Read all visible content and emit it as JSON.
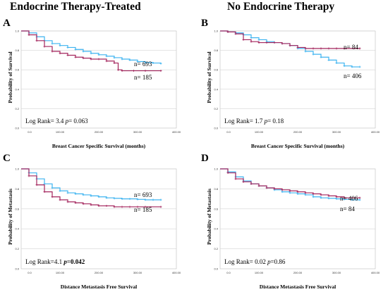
{
  "column_titles": [
    "Endocrine Therapy-Treated",
    "No Endocrine Therapy"
  ],
  "colors": {
    "blue": "#3db3f0",
    "red": "#a3245c",
    "grid": "#d3d3d3"
  },
  "chart_data": [
    {
      "letter": "A",
      "type": "line",
      "ylabel": "Probability of Survival",
      "xlabel": "Breast Cancer Specific Survival (months)",
      "xlim": [
        0,
        400
      ],
      "ylim": [
        0,
        1.0
      ],
      "xticks": [
        "0.0",
        "100.00",
        "200.00",
        "300.00",
        "400.00"
      ],
      "yticks": [
        "0.0",
        "0.2",
        "0.4",
        "0.6",
        "0.8",
        "1.0"
      ],
      "series": [
        {
          "name": "n= 693",
          "color": "#3db3f0",
          "x": [
            0,
            20,
            40,
            60,
            80,
            100,
            120,
            140,
            160,
            180,
            200,
            220,
            240,
            260,
            280,
            300,
            320,
            340,
            360
          ],
          "y": [
            1.0,
            0.98,
            0.94,
            0.9,
            0.87,
            0.85,
            0.83,
            0.81,
            0.79,
            0.77,
            0.755,
            0.74,
            0.725,
            0.71,
            0.7,
            0.685,
            0.675,
            0.67,
            0.665
          ]
        },
        {
          "name": "n= 185",
          "color": "#a3245c",
          "x": [
            0,
            20,
            40,
            60,
            80,
            100,
            120,
            140,
            160,
            180,
            200,
            220,
            240,
            250,
            260,
            290,
            320,
            360
          ],
          "y": [
            1.0,
            0.96,
            0.9,
            0.84,
            0.79,
            0.77,
            0.75,
            0.73,
            0.72,
            0.71,
            0.71,
            0.69,
            0.67,
            0.6,
            0.59,
            0.59,
            0.59,
            0.59
          ]
        }
      ],
      "annotations": [
        "n= 693",
        "n= 185"
      ],
      "stats": {
        "prefix": "Log Rank= 3.4 ",
        "p_label": "p",
        "p_value": "= 0.063",
        "p_bold": false
      }
    },
    {
      "letter": "B",
      "type": "line",
      "ylabel": "Probability of Survival",
      "xlabel": "Breast Cancer Specific Survival (months)",
      "xlim": [
        0,
        400
      ],
      "ylim": [
        0,
        1.0
      ],
      "xticks": [
        "0.0",
        "100.00",
        "200.00",
        "300.00",
        "400.00"
      ],
      "yticks": [
        "0.0",
        "0.2",
        "0.4",
        "0.6",
        "0.8",
        "1.0"
      ],
      "series": [
        {
          "name": "n= 406",
          "color": "#3db3f0",
          "x": [
            0,
            20,
            40,
            60,
            80,
            100,
            120,
            140,
            160,
            180,
            200,
            220,
            240,
            260,
            280,
            300,
            320,
            340,
            360
          ],
          "y": [
            1.0,
            0.99,
            0.98,
            0.96,
            0.93,
            0.91,
            0.89,
            0.88,
            0.87,
            0.85,
            0.82,
            0.79,
            0.76,
            0.73,
            0.7,
            0.67,
            0.64,
            0.63,
            0.63
          ]
        },
        {
          "name": "n= 84",
          "color": "#a3245c",
          "x": [
            0,
            20,
            40,
            60,
            80,
            100,
            120,
            140,
            160,
            180,
            200,
            220,
            240,
            260,
            280,
            300,
            320,
            360
          ],
          "y": [
            1.0,
            0.99,
            0.97,
            0.91,
            0.89,
            0.88,
            0.88,
            0.88,
            0.87,
            0.85,
            0.83,
            0.82,
            0.82,
            0.82,
            0.82,
            0.82,
            0.82,
            0.82
          ]
        }
      ],
      "annotations": [
        "n= 84",
        "n= 406"
      ],
      "stats": {
        "prefix": "Log Rank= 1.7 ",
        "p_label": "p",
        "p_value": "= 0.18",
        "p_bold": false
      }
    },
    {
      "letter": "C",
      "type": "line",
      "ylabel": "Probability of Metastasis",
      "xlabel": "Distance Metastasis Free Survival",
      "xlim": [
        0,
        400
      ],
      "ylim": [
        0,
        1.0
      ],
      "xticks": [
        "0.0",
        "100.00",
        "200.00",
        "300.00",
        "400.00"
      ],
      "yticks": [
        "0.0",
        "0.2",
        "0.4",
        "0.6",
        "0.8",
        "1.0"
      ],
      "series": [
        {
          "name": "n= 693",
          "color": "#3db3f0",
          "x": [
            0,
            20,
            40,
            60,
            80,
            100,
            120,
            140,
            160,
            180,
            200,
            220,
            240,
            260,
            280,
            300,
            320,
            340,
            360
          ],
          "y": [
            1.0,
            0.96,
            0.9,
            0.85,
            0.81,
            0.78,
            0.76,
            0.75,
            0.74,
            0.73,
            0.72,
            0.71,
            0.705,
            0.7,
            0.7,
            0.695,
            0.69,
            0.69,
            0.69
          ]
        },
        {
          "name": "n= 185",
          "color": "#a3245c",
          "x": [
            0,
            20,
            40,
            60,
            80,
            100,
            120,
            140,
            160,
            180,
            200,
            220,
            240,
            260,
            280,
            300,
            320,
            360
          ],
          "y": [
            1.0,
            0.93,
            0.84,
            0.77,
            0.72,
            0.69,
            0.67,
            0.66,
            0.65,
            0.64,
            0.63,
            0.63,
            0.62,
            0.62,
            0.62,
            0.62,
            0.62,
            0.62
          ]
        }
      ],
      "annotations": [
        "n= 693",
        "n= 185"
      ],
      "stats": {
        "prefix": "Log Rank=4.1 ",
        "p_label": "p",
        "p_value": "=0.042",
        "p_bold": true
      }
    },
    {
      "letter": "D",
      "type": "line",
      "ylabel": "Probability of Metastasis",
      "xlabel": "Distance Metastasis Free Survival",
      "xlim": [
        0,
        400
      ],
      "ylim": [
        0,
        1.0
      ],
      "xticks": [
        "0.0",
        "100.00",
        "200.00",
        "300.00",
        "400.00"
      ],
      "yticks": [
        "0.0",
        "0.2",
        "0.4",
        "0.6",
        "0.8",
        "1.0"
      ],
      "series": [
        {
          "name": "n= 406",
          "color": "#3db3f0",
          "x": [
            0,
            20,
            40,
            60,
            80,
            100,
            120,
            140,
            160,
            180,
            200,
            220,
            240,
            260,
            280,
            300,
            320,
            340,
            360
          ],
          "y": [
            1.0,
            0.97,
            0.92,
            0.88,
            0.85,
            0.83,
            0.81,
            0.79,
            0.77,
            0.76,
            0.75,
            0.74,
            0.72,
            0.71,
            0.705,
            0.7,
            0.695,
            0.69,
            0.69
          ]
        },
        {
          "name": "n= 84",
          "color": "#a3245c",
          "x": [
            0,
            20,
            40,
            60,
            80,
            100,
            120,
            140,
            160,
            180,
            200,
            220,
            240,
            260,
            280,
            300,
            320,
            360
          ],
          "y": [
            1.0,
            0.96,
            0.9,
            0.87,
            0.85,
            0.83,
            0.81,
            0.8,
            0.79,
            0.78,
            0.77,
            0.76,
            0.75,
            0.74,
            0.73,
            0.72,
            0.71,
            0.71
          ]
        }
      ],
      "annotations": [
        "n= 406",
        "n= 84"
      ],
      "stats": {
        "prefix": "Log Rank= 0.02 ",
        "p_label": "p",
        "p_value": "=0.86",
        "p_bold": false
      }
    }
  ]
}
